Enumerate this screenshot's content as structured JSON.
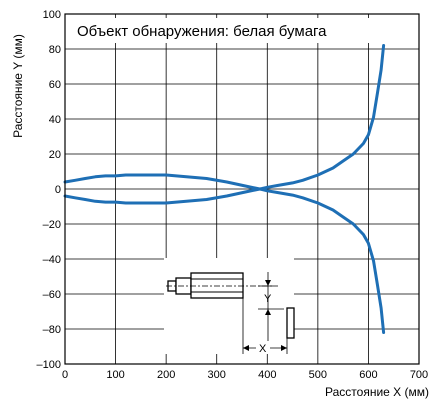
{
  "chart_data": {
    "type": "line",
    "title": "Объект обнаружения: белая бумага",
    "xlabel": "Расстояние X (мм)",
    "ylabel": "Расстояние Y (мм)",
    "xlim": [
      0,
      700
    ],
    "ylim": [
      -100,
      100
    ],
    "xticks": [
      0,
      100,
      200,
      300,
      400,
      500,
      600,
      700
    ],
    "yticks": [
      -100,
      -80,
      -60,
      -40,
      -20,
      0,
      20,
      40,
      60,
      80,
      100
    ],
    "grid": true,
    "series": [
      {
        "color": "#1e6fb5",
        "x": [
          0,
          20,
          40,
          60,
          80,
          100,
          120,
          140,
          160,
          180,
          200,
          240,
          280,
          320,
          360,
          390,
          400,
          420,
          450,
          470,
          500,
          530,
          550,
          570,
          590,
          600,
          610,
          618,
          625,
          630
        ],
        "y": [
          4,
          5,
          6,
          7,
          7.5,
          7.5,
          8,
          8,
          8,
          8,
          8,
          7,
          6,
          4,
          1.5,
          -0.3,
          -1,
          -2,
          -3.5,
          -5,
          -8,
          -12,
          -16,
          -20,
          -26,
          -31,
          -41,
          -55,
          -68,
          -82
        ]
      },
      {
        "color": "#1e6fb5",
        "x": [
          0,
          20,
          40,
          60,
          80,
          100,
          120,
          140,
          160,
          180,
          200,
          240,
          280,
          320,
          360,
          390,
          400,
          420,
          450,
          470,
          500,
          530,
          550,
          570,
          590,
          600,
          610,
          618,
          625,
          630
        ],
        "y": [
          -4,
          -5,
          -6,
          -7,
          -7.5,
          -7.5,
          -8,
          -8,
          -8,
          -8,
          -8,
          -7,
          -6,
          -4,
          -1.5,
          0.3,
          1,
          2,
          3.5,
          5,
          8,
          12,
          16,
          20,
          26,
          31,
          41,
          55,
          68,
          82
        ]
      }
    ],
    "inset": {
      "y_label": "Y",
      "x_label": "X"
    }
  }
}
